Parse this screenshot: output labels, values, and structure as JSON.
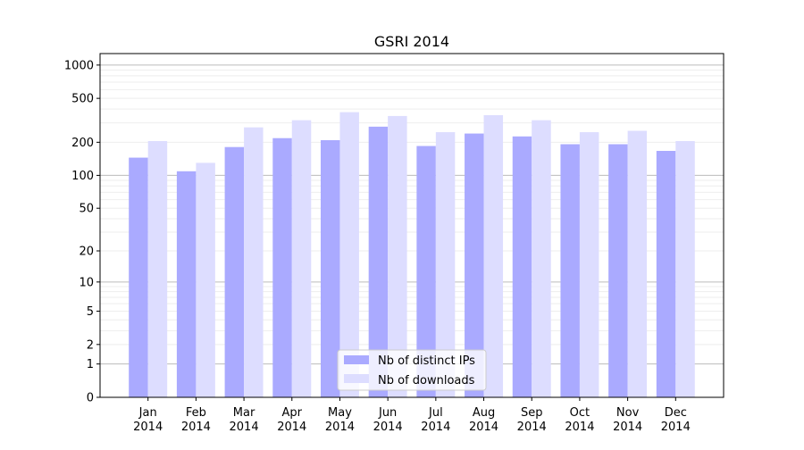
{
  "chart_data": {
    "type": "bar",
    "title": "GSRI 2014",
    "xlabel": "",
    "ylabel": "",
    "yscale": "symlog (log of 1+value)",
    "ylim": [
      0,
      1270
    ],
    "yticks": [
      "0",
      "1",
      "2",
      "5",
      "10",
      "20",
      "50",
      "100",
      "200",
      "500",
      "1000"
    ],
    "grid": true,
    "legend_position": "bottom-center",
    "categories": [
      "Jan\n2014",
      "Feb\n2014",
      "Mar\n2014",
      "Apr\n2014",
      "May\n2014",
      "Jun\n2014",
      "Jul\n2014",
      "Aug\n2014",
      "Sep\n2014",
      "Oct\n2014",
      "Nov\n2014",
      "Dec\n2014"
    ],
    "series": [
      {
        "name": "Nb of distinct IPs",
        "color": "#aaaaff",
        "values": [
          145,
          109,
          181,
          218,
          209,
          277,
          185,
          240,
          226,
          192,
          192,
          167
        ]
      },
      {
        "name": "Nb of downloads",
        "color": "#ddddff",
        "values": [
          205,
          130,
          273,
          317,
          375,
          346,
          247,
          352,
          317,
          247,
          254,
          205
        ]
      }
    ]
  }
}
